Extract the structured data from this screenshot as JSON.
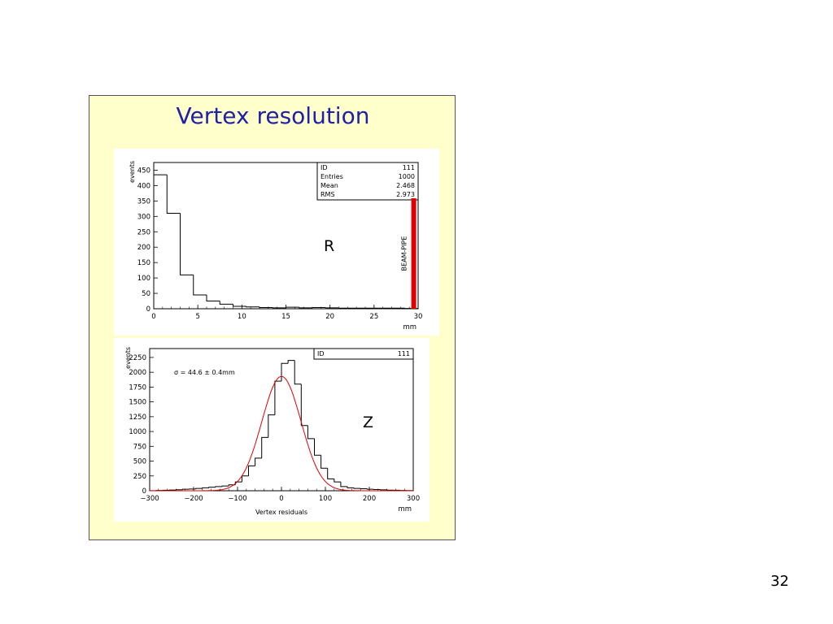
{
  "slide": {
    "title": "Vertex resolution",
    "page_number": "32"
  },
  "colors": {
    "panel_background": "#ffffcc",
    "title_color": "#2020a8",
    "beam_pipe_red": "#e00000",
    "fit_red": "#e00000"
  },
  "chart_data": [
    {
      "type": "bar",
      "histogram": true,
      "title": "",
      "panel_label": "R",
      "ylabel": "events",
      "xlabel": "mm",
      "xlim": [
        0,
        30
      ],
      "ylim": [
        0,
        475
      ],
      "x_ticks": [
        0,
        5,
        10,
        15,
        20,
        25,
        30
      ],
      "y_ticks": [
        0,
        50,
        100,
        150,
        200,
        250,
        300,
        350,
        400,
        450
      ],
      "bin_edges": [
        0,
        1.5,
        3,
        4.5,
        6,
        7.5,
        9,
        10.5,
        12,
        13.5,
        15,
        16.5,
        18,
        19.5,
        21,
        22.5,
        24,
        25.5,
        27,
        28.5,
        30
      ],
      "values": [
        435,
        310,
        110,
        45,
        25,
        15,
        8,
        6,
        4,
        3,
        5,
        3,
        4,
        3,
        2,
        2,
        2,
        2,
        2,
        1
      ],
      "stats": {
        "rows": [
          {
            "label": "ID",
            "value": "111"
          },
          {
            "label": "Entries",
            "value": "1000"
          },
          {
            "label": "Mean",
            "value": "2.468"
          },
          {
            "label": "RMS",
            "value": "2.973"
          }
        ]
      },
      "annotations": [
        {
          "text": "BEAM-PIPE",
          "x": 29.5,
          "color": "#e00000"
        }
      ]
    },
    {
      "type": "bar",
      "histogram": true,
      "title": "",
      "panel_label": "Z",
      "ylabel": "events",
      "xlabel": "mm",
      "x_axis_title": "Vertex residuals",
      "xlim": [
        -300,
        300
      ],
      "ylim": [
        0,
        2400
      ],
      "x_ticks": [
        -300,
        -200,
        -100,
        0,
        100,
        200,
        300
      ],
      "y_ticks": [
        0,
        250,
        500,
        750,
        1000,
        1250,
        1500,
        1750,
        2000,
        2250
      ],
      "bin_start": -300,
      "bin_width": 15,
      "values": [
        2,
        5,
        8,
        12,
        18,
        25,
        30,
        40,
        50,
        60,
        70,
        80,
        100,
        150,
        250,
        420,
        550,
        900,
        1280,
        1850,
        2150,
        2200,
        1800,
        1100,
        880,
        600,
        380,
        200,
        150,
        70,
        50,
        40,
        35,
        25,
        20,
        15,
        10,
        8,
        5,
        3
      ],
      "fit": {
        "type": "gaussian",
        "mean": 0,
        "sigma": 44.6,
        "amplitude": 1930,
        "color": "#e00000"
      },
      "fit_label": "σ = 44.6 ± 0.4mm",
      "stats": {
        "rows": [
          {
            "label": "ID",
            "value": "111"
          }
        ]
      }
    }
  ]
}
